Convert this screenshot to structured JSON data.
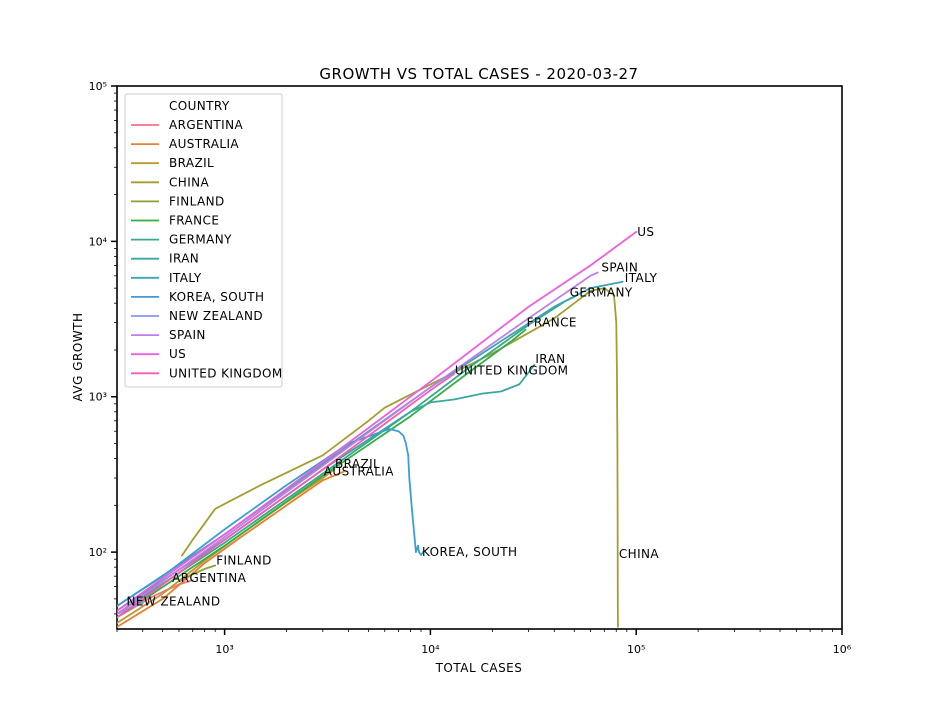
{
  "chart_data": {
    "type": "line",
    "title": "GROWTH VS TOTAL CASES - 2020-03-27",
    "xlabel": "TOTAL CASES",
    "ylabel": "AVG GROWTH",
    "xscale": "log",
    "yscale": "log",
    "xlim": [
      300,
      1000000
    ],
    "ylim": [
      32,
      100000
    ],
    "x_ticks": [
      {
        "value": 1000,
        "label": "10³"
      },
      {
        "value": 10000,
        "label": "10⁴"
      },
      {
        "value": 100000,
        "label": "10⁵"
      },
      {
        "value": 1000000,
        "label": "10⁶"
      }
    ],
    "y_ticks": [
      {
        "value": 100,
        "label": "10²"
      },
      {
        "value": 1000,
        "label": "10³"
      },
      {
        "value": 10000,
        "label": "10⁴"
      },
      {
        "value": 100000,
        "label": "10⁵"
      }
    ],
    "legend": {
      "title": "COUNTRY",
      "placement": "upper-left"
    },
    "series": [
      {
        "name": "ARGENTINA",
        "color": "#f77189",
        "x": [
          300,
          450,
          600,
          700
        ],
        "y": [
          38,
          52,
          62,
          66
        ]
      },
      {
        "name": "AUSTRALIA",
        "color": "#e7812e",
        "x": [
          300,
          500,
          800,
          1200,
          2000,
          3000,
          3800
        ],
        "y": [
          33,
          50,
          85,
          125,
          200,
          290,
          330
        ]
      },
      {
        "name": "BRAZIL",
        "color": "#bb9832",
        "x": [
          300,
          500,
          800,
          1200,
          2000,
          3000,
          3400
        ],
        "y": [
          35,
          54,
          88,
          130,
          210,
          300,
          340
        ]
      },
      {
        "name": "CHINA",
        "color": "#a39e2f",
        "x": [
          620,
          700,
          900,
          1500,
          3000,
          5000,
          6000,
          10000,
          20000,
          40000,
          50000,
          60000,
          70000,
          78000,
          80000,
          80600,
          81000,
          81200,
          81300,
          81400,
          81500
        ],
        "y": [
          95,
          120,
          190,
          270,
          420,
          700,
          850,
          1200,
          1900,
          3200,
          4000,
          4800,
          5000,
          4500,
          3000,
          1500,
          500,
          200,
          100,
          50,
          33
        ]
      },
      {
        "name": "FINLAND",
        "color": "#8ca033",
        "x": [
          600,
          700,
          800,
          900
        ],
        "y": [
          65,
          72,
          78,
          82
        ]
      },
      {
        "name": "FRANCE",
        "color": "#36ae43",
        "x": [
          300,
          1000,
          3000,
          8000,
          15000,
          25000,
          29000
        ],
        "y": [
          38,
          110,
          310,
          750,
          1400,
          2300,
          2700
        ]
      },
      {
        "name": "GERMANY",
        "color": "#37a88c",
        "x": [
          300,
          1000,
          3000,
          8000,
          15000,
          30000,
          45000,
          50000
        ],
        "y": [
          40,
          115,
          320,
          800,
          1500,
          2900,
          4100,
          4400
        ]
      },
      {
        "name": "IRAN",
        "color": "#39a8a0",
        "x": [
          300,
          1000,
          3000,
          8000,
          10000,
          13000,
          18000,
          22000,
          27000,
          32000
        ],
        "y": [
          42,
          120,
          340,
          800,
          920,
          960,
          1050,
          1080,
          1200,
          1600
        ]
      },
      {
        "name": "ITALY",
        "color": "#3aa6b2",
        "x": [
          300,
          1000,
          3000,
          10000,
          20000,
          40000,
          60000,
          86000
        ],
        "y": [
          45,
          130,
          370,
          1150,
          2100,
          3800,
          5000,
          5500
        ]
      },
      {
        "name": "KOREA, SOUTH",
        "color": "#3a9fd2",
        "x": [
          300,
          500,
          1000,
          2000,
          4000,
          6300,
          7000,
          7400,
          7600,
          7800,
          7900,
          8100,
          8300,
          8400,
          8500,
          8700,
          8800,
          9000,
          9200
        ],
        "y": [
          45,
          70,
          140,
          270,
          500,
          620,
          600,
          560,
          500,
          420,
          300,
          200,
          140,
          120,
          100,
          110,
          100,
          96,
          100
        ]
      },
      {
        "name": "NEW ZEALAND",
        "color": "#8e92ef",
        "x": [
          300,
          350,
          400
        ],
        "y": [
          40,
          44,
          47
        ]
      },
      {
        "name": "SPAIN",
        "color": "#c07deb",
        "x": [
          300,
          1000,
          3000,
          10000,
          30000,
          60000,
          65000
        ],
        "y": [
          40,
          125,
          360,
          1150,
          3200,
          6000,
          6300
        ]
      },
      {
        "name": "US",
        "color": "#ef5ee0",
        "x": [
          300,
          1000,
          3000,
          10000,
          30000,
          60000,
          100000
        ],
        "y": [
          42,
          130,
          380,
          1250,
          3800,
          7000,
          11500
        ]
      },
      {
        "name": "UNITED KINGDOM",
        "color": "#f65cb1",
        "x": [
          300,
          1000,
          3000,
          10000,
          13000
        ],
        "y": [
          38,
          120,
          340,
          1100,
          1400
        ]
      }
    ],
    "annotations": [
      {
        "text": "US",
        "x": 100000,
        "y": 11500
      },
      {
        "text": "SPAIN",
        "x": 67000,
        "y": 6800
      },
      {
        "text": "ITALY",
        "x": 87000,
        "y": 5800
      },
      {
        "text": "GERMANY",
        "x": 47000,
        "y": 4700
      },
      {
        "text": "FRANCE",
        "x": 29000,
        "y": 3000
      },
      {
        "text": "IRAN",
        "x": 32000,
        "y": 1750
      },
      {
        "text": "UNITED KINGDOM",
        "x": 13000,
        "y": 1480
      },
      {
        "text": "BRAZIL",
        "x": 3400,
        "y": 370
      },
      {
        "text": "AUSTRALIA",
        "x": 3000,
        "y": 330
      },
      {
        "text": "FINLAND",
        "x": 900,
        "y": 88
      },
      {
        "text": "ARGENTINA",
        "x": 550,
        "y": 68
      },
      {
        "text": "NEW ZEALAND",
        "x": 330,
        "y": 48
      },
      {
        "text": "KOREA, SOUTH",
        "x": 9000,
        "y": 100
      },
      {
        "text": "CHINA",
        "x": 81500,
        "y": 97
      }
    ]
  }
}
